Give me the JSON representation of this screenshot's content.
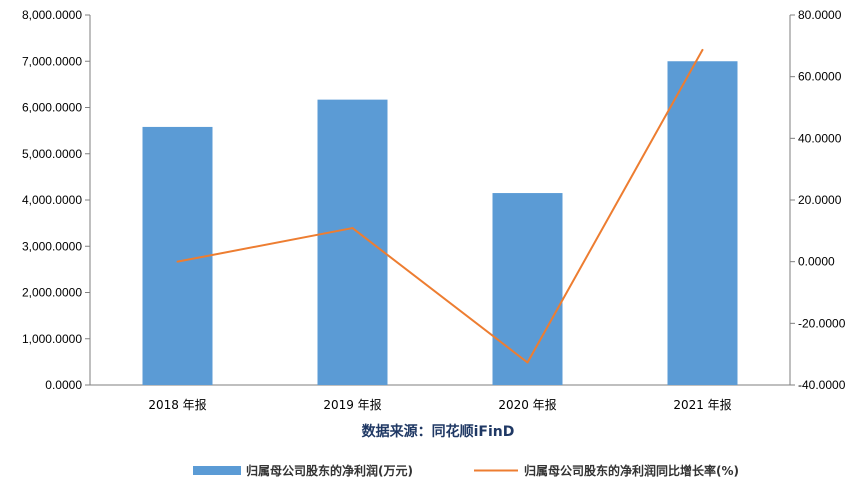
{
  "chart_data": {
    "type": "bar+line",
    "categories": [
      "2018 年报",
      "2019 年报",
      "2020 年报",
      "2021 年报"
    ],
    "series": [
      {
        "name": "归属母公司股东的净利润(万元)",
        "type": "bar",
        "axis": "left",
        "color": "#5b9bd5",
        "values": [
          5580.0,
          6170.0,
          4150.0,
          7000.0
        ]
      },
      {
        "name": "归属母公司股东的净利润同比增长率(%)",
        "type": "line",
        "axis": "right",
        "color": "#ed7d31",
        "values": [
          0.0,
          10.9,
          -32.7,
          68.7
        ]
      }
    ],
    "y_left": {
      "min": 0,
      "max": 8000,
      "step": 1000,
      "ticks": [
        "0.0000",
        "1,000.0000",
        "2,000.0000",
        "3,000.0000",
        "4,000.0000",
        "5,000.0000",
        "6,000.0000",
        "7,000.0000",
        "8,000.0000"
      ]
    },
    "y_right": {
      "min": -40,
      "max": 80,
      "step": 20,
      "ticks": [
        "-40.0000",
        "-20.0000",
        "0.0000",
        "20.0000",
        "40.0000",
        "60.0000",
        "80.0000"
      ]
    },
    "source": "数据来源：同花顺iFinD",
    "legend_position": "bottom",
    "grid": false
  }
}
